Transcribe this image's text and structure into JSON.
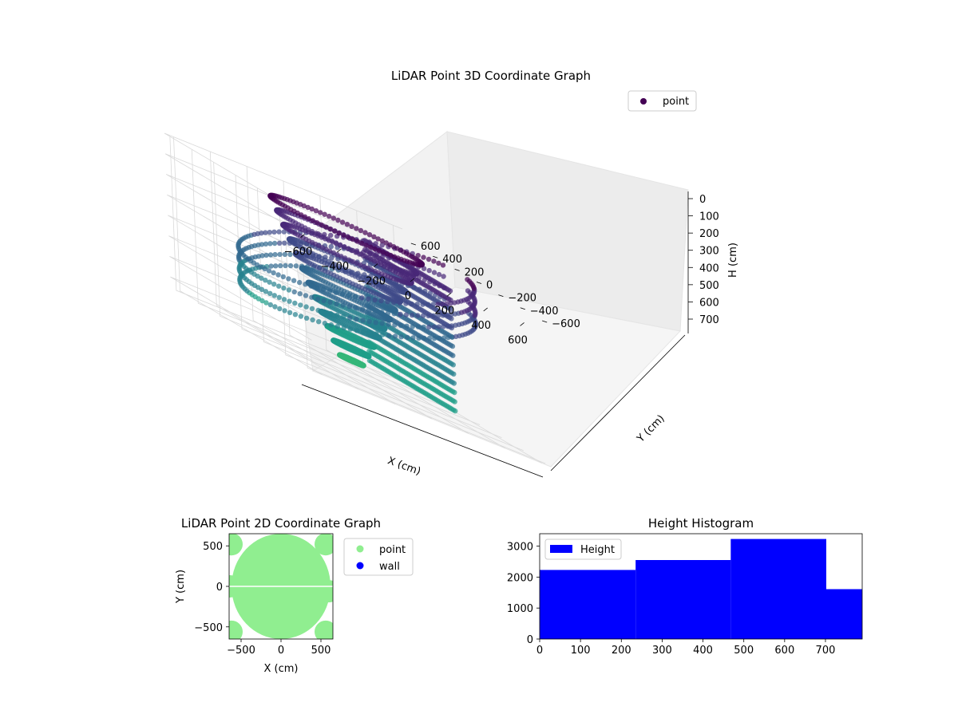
{
  "colors": {
    "viridis_dark": "#440154",
    "viridis_mid": "#3b528b",
    "viridis_teal": "#21918c",
    "viridis_light": "#5ec962",
    "point_2d": "#90ee90",
    "wall_2d": "#0000ff",
    "hist_bar": "#0000ff",
    "pane": "#f2f2f2",
    "grid": "#d9d9d9"
  },
  "chart_data": [
    {
      "type": "scatter",
      "title": "LiDAR Point 3D Coordinate Graph",
      "xlabel": "X (cm)",
      "ylabel": "Y (cm)",
      "zlabel": "H (cm)",
      "xticks": [
        -600,
        -400,
        -200,
        0,
        200,
        400,
        600
      ],
      "yticks": [
        -600,
        -400,
        -200,
        0,
        200,
        400,
        600
      ],
      "zticks": [
        0,
        100,
        200,
        300,
        400,
        500,
        600,
        700
      ],
      "xlim": [
        -650,
        650
      ],
      "ylim": [
        -650,
        650
      ],
      "zlim": [
        0,
        750
      ],
      "z_inverted": true,
      "grid": true,
      "legend": {
        "placement": "upper right",
        "entries": [
          {
            "label": "point",
            "color": "#440154"
          }
        ]
      },
      "colormap": "viridis"
    },
    {
      "type": "scatter",
      "title": "LiDAR Point 2D Coordinate Graph",
      "xlabel": "X (cm)",
      "ylabel": "Y (cm)",
      "xticks": [
        -500,
        0,
        500
      ],
      "yticks": [
        -500,
        0,
        500
      ],
      "xlim": [
        -650,
        650
      ],
      "ylim": [
        -650,
        650
      ],
      "series": [
        {
          "name": "point",
          "color": "#90ee90"
        },
        {
          "name": "wall",
          "color": "#0000ff"
        }
      ],
      "legend": {
        "placement": "outside right"
      }
    },
    {
      "type": "bar",
      "title": "Height Histogram",
      "xticks": [
        0,
        100,
        200,
        300,
        400,
        500,
        600,
        700
      ],
      "yticks": [
        0,
        1000,
        2000,
        3000
      ],
      "xlim": [
        0,
        790
      ],
      "ylim": [
        0,
        3400
      ],
      "bins": [
        {
          "x0": 0,
          "x1": 235,
          "count": 2230
        },
        {
          "x0": 235,
          "x1": 468,
          "count": 2550
        },
        {
          "x0": 468,
          "x1": 702,
          "count": 3230
        },
        {
          "x0": 702,
          "x1": 790,
          "count": 1610
        }
      ],
      "series": [
        {
          "name": "Height",
          "color": "#0000ff"
        }
      ],
      "legend": {
        "placement": "upper left"
      }
    }
  ]
}
